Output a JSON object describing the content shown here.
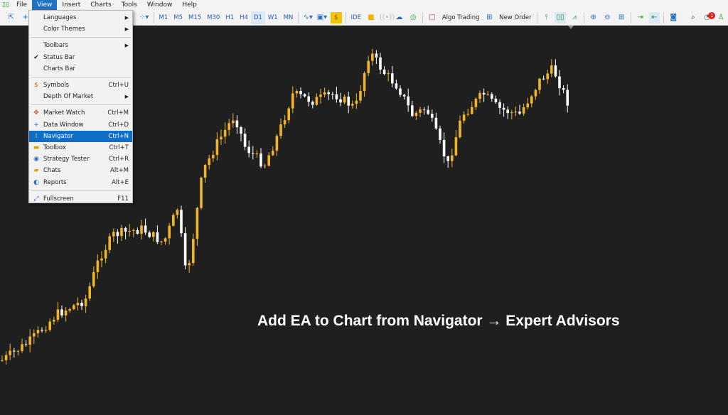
{
  "menubar": {
    "items": [
      "File",
      "View",
      "Insert",
      "Charts",
      "Tools",
      "Window",
      "Help"
    ],
    "active": "View"
  },
  "toolbar": {
    "timeframes": [
      "M1",
      "M5",
      "M15",
      "M30",
      "H1",
      "H4",
      "D1",
      "W1",
      "MN"
    ],
    "selected_timeframe": "D1",
    "ide": "IDE",
    "algo_trading": "Algo Trading",
    "new_order": "New Order",
    "notification_count": "1"
  },
  "view_menu": {
    "items": [
      {
        "label": "Languages",
        "shortcut": "",
        "submenu": true,
        "icon": ""
      },
      {
        "label": "Color Themes",
        "shortcut": "",
        "submenu": true,
        "icon": ""
      },
      {
        "label": "Toolbars",
        "shortcut": "",
        "submenu": true,
        "icon": ""
      },
      {
        "label": "Status Bar",
        "shortcut": "",
        "checked": true,
        "icon": "check-icon"
      },
      {
        "label": "Charts Bar",
        "shortcut": "",
        "icon": ""
      },
      {
        "label": "Symbols",
        "shortcut": "Ctrl+U",
        "icon": "symbols-icon"
      },
      {
        "label": "Depth Of Market",
        "shortcut": "",
        "submenu": true,
        "icon": ""
      },
      {
        "label": "Market Watch",
        "shortcut": "Ctrl+M",
        "icon": "market-watch-icon"
      },
      {
        "label": "Data Window",
        "shortcut": "Ctrl+D",
        "icon": "data-window-icon"
      },
      {
        "label": "Navigator",
        "shortcut": "Ctrl+N",
        "highlighted": true,
        "icon": "navigator-icon"
      },
      {
        "label": "Toolbox",
        "shortcut": "Ctrl+T",
        "icon": "toolbox-icon"
      },
      {
        "label": "Strategy Tester",
        "shortcut": "Ctrl+R",
        "icon": "strategy-tester-icon"
      },
      {
        "label": "Chats",
        "shortcut": "Alt+M",
        "icon": "chats-icon"
      },
      {
        "label": "Reports",
        "shortcut": "Alt+E",
        "icon": "reports-icon"
      },
      {
        "label": "Fullscreen",
        "shortcut": "F11",
        "icon": "fullscreen-icon"
      }
    ]
  },
  "chart": {
    "background": "#1f1f1f",
    "bull_color": "#f0b429",
    "bear_color": "#ffffff"
  },
  "caption": "Add EA to Chart from Navigator → Expert Advisors"
}
